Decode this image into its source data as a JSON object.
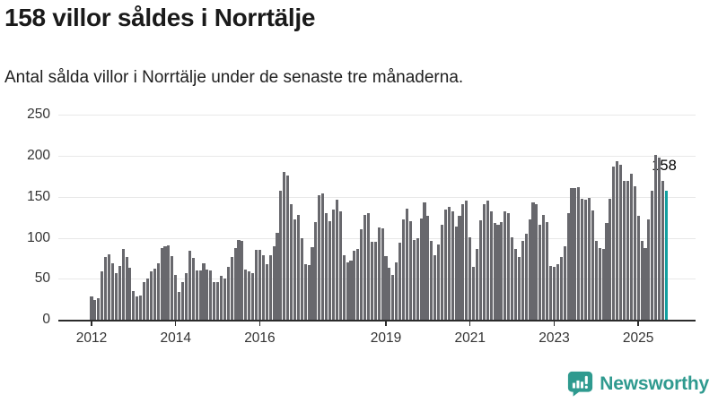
{
  "header": {
    "title": "158 villor såldes i Norrtälje",
    "subtitle": "Antal sålda villor i Norrtälje under de senaste tre månaderna."
  },
  "chart_data": {
    "type": "bar",
    "title": "158 villor såldes i Norrtälje",
    "subtitle": "Antal sålda villor i Norrtälje under de senaste tre månaderna.",
    "xlabel": "",
    "ylabel": "",
    "frequency": "monthly",
    "x_start": "2012-01",
    "x_end": "2025-09",
    "ylim": [
      0,
      260
    ],
    "yticks": [
      0,
      50,
      100,
      150,
      200,
      250
    ],
    "xticks": [
      {
        "label": "2012",
        "month_index": 0
      },
      {
        "label": "2014",
        "month_index": 24
      },
      {
        "label": "2016",
        "month_index": 48
      },
      {
        "label": "2019",
        "month_index": 84
      },
      {
        "label": "2021",
        "month_index": 108
      },
      {
        "label": "2023",
        "month_index": 132
      },
      {
        "label": "2025",
        "month_index": 156
      }
    ],
    "grid": true,
    "legend": false,
    "bar_color": "#68686d",
    "highlight_color": "#12a0a0",
    "highlight_index": 164,
    "annotation": {
      "text": "158",
      "value": 158
    },
    "values": [
      28,
      24,
      26,
      59,
      77,
      80,
      69,
      57,
      66,
      86,
      76,
      63,
      35,
      28,
      30,
      46,
      50,
      59,
      62,
      69,
      88,
      90,
      91,
      78,
      55,
      34,
      46,
      57,
      84,
      75,
      60,
      60,
      69,
      61,
      60,
      46,
      46,
      54,
      50,
      65,
      76,
      87,
      97,
      96,
      61,
      59,
      57,
      85,
      85,
      79,
      68,
      79,
      90,
      106,
      157,
      180,
      176,
      141,
      123,
      128,
      100,
      68,
      67,
      89,
      119,
      152,
      154,
      130,
      120,
      135,
      147,
      132,
      79,
      70,
      72,
      84,
      86,
      110,
      128,
      130,
      95,
      95,
      113,
      111,
      78,
      63,
      55,
      70,
      94,
      122,
      136,
      120,
      97,
      99,
      124,
      143,
      127,
      96,
      79,
      92,
      116,
      134,
      138,
      132,
      114,
      127,
      141,
      145,
      101,
      65,
      86,
      121,
      141,
      145,
      132,
      118,
      116,
      119,
      132,
      130,
      101,
      86,
      76,
      96,
      105,
      123,
      143,
      141,
      116,
      128,
      119,
      66,
      65,
      68,
      77,
      90,
      130,
      161,
      161,
      162,
      148,
      147,
      149,
      133,
      96,
      88,
      86,
      118,
      148,
      187,
      194,
      189,
      169,
      169,
      178,
      163,
      127,
      96,
      88,
      123,
      158,
      201,
      198,
      170,
      158
    ]
  },
  "footer": {
    "brand": "Newsworthy",
    "brand_color": "#2f9a8f",
    "logo_icon": "bar-chart-speech-bubble-icon"
  }
}
